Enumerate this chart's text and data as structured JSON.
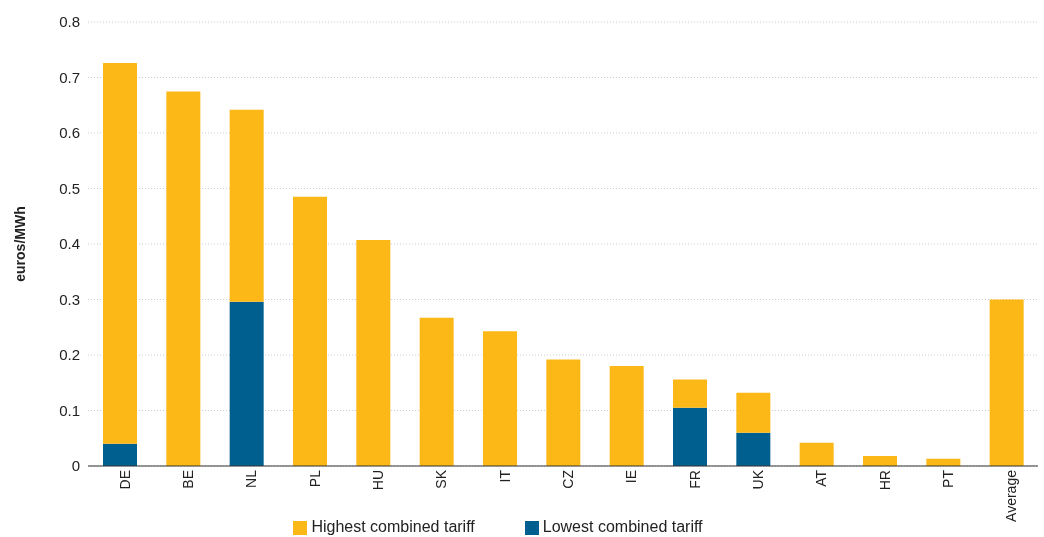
{
  "chart_data": {
    "type": "bar",
    "stacked": true,
    "ylabel": "euros/MWh",
    "categories": [
      "DE",
      "BE",
      "NL",
      "PL",
      "HU",
      "SK",
      "IT",
      "CZ",
      "IE",
      "FR",
      "UK",
      "AT",
      "HR",
      "PT",
      "Average"
    ],
    "series": [
      {
        "name": "Lowest combined tariff",
        "color": "#005f8f",
        "values": [
          0.04,
          null,
          0.296,
          null,
          null,
          null,
          null,
          null,
          null,
          0.105,
          0.06,
          null,
          null,
          null,
          null
        ]
      },
      {
        "name": "Highest combined tariff",
        "color": "#fbb817",
        "values": [
          0.686,
          0.675,
          0.346,
          0.485,
          0.407,
          0.267,
          0.243,
          0.192,
          0.18,
          0.051,
          0.072,
          0.042,
          0.018,
          0.013,
          0.3
        ]
      }
    ],
    "ylim": [
      0,
      0.8
    ],
    "yticks": [
      0,
      0.1,
      0.2,
      0.3,
      0.4,
      0.5,
      0.6,
      0.7,
      0.8
    ],
    "grid": "y",
    "legend": "bottom"
  }
}
